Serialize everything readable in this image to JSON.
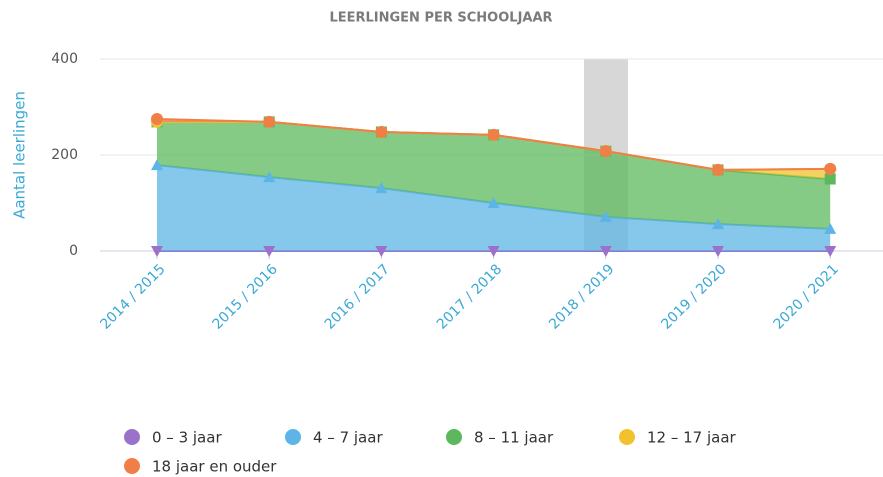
{
  "chart_data": {
    "type": "stacked_area",
    "title": "LEERLINGEN PER SCHOOLJAAR",
    "y_label": "Aantal leerlingen",
    "categories": [
      "2014 / 2015",
      "2015 / 2016",
      "2016 / 2017",
      "2017 / 2018",
      "2018 / 2019",
      "2019 / 2020",
      "2020 / 2021"
    ],
    "series": [
      {
        "name": "0 – 3 jaar",
        "color": "#9b72c9",
        "marker": "triangle-down",
        "values": [
          0,
          0,
          0,
          0,
          0,
          0,
          0
        ]
      },
      {
        "name": "4 – 7 jaar",
        "color": "#5db4e6",
        "marker": "triangle",
        "values": [
          179,
          154,
          131,
          100,
          71,
          56,
          46
        ]
      },
      {
        "name": "8 – 11 jaar",
        "color": "#5cb85c",
        "marker": "square",
        "values": [
          90,
          115,
          117,
          142,
          137,
          113,
          104
        ]
      },
      {
        "name": "12 – 17 jaar",
        "color": "#f2c12e",
        "marker": "circle",
        "values": [
          0,
          0,
          0,
          0,
          0,
          0,
          21
        ]
      },
      {
        "name": "18 jaar en ouder",
        "color": "#f07f47",
        "marker": "circle",
        "values": [
          6,
          0,
          0,
          0,
          0,
          0,
          0
        ]
      }
    ],
    "ylim": [
      0,
      400
    ],
    "yticks": [
      0,
      200,
      400
    ],
    "grid": true
  }
}
